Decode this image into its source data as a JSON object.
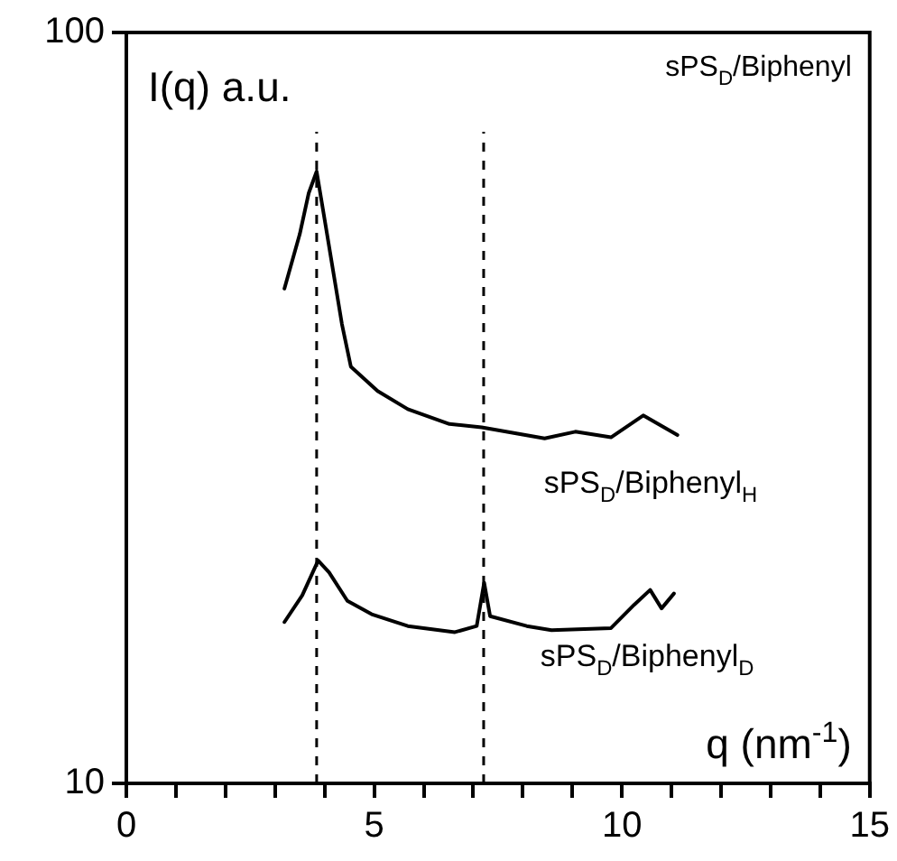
{
  "chart_data": {
    "type": "line",
    "title": "sPS$_{D}$/Biphenyl",
    "xlabel": "q (nm$^{-1}$)",
    "ylabel": "I(q) a.u.",
    "log": "y",
    "grid": false,
    "legend": false,
    "marker": "none",
    "line_style": "solid",
    "xlim": [
      0,
      15
    ],
    "xticks": [
      0,
      {
        "value": 1,
        "label": null
      },
      {
        "value": 2,
        "label": null
      },
      {
        "value": 3,
        "label": null
      },
      {
        "value": 4,
        "label": null
      },
      5,
      {
        "value": 6,
        "label": null
      },
      {
        "value": 7,
        "label": null
      },
      {
        "value": 8,
        "label": null
      },
      {
        "value": 9,
        "label": null
      },
      10,
      {
        "value": 11,
        "label": null
      },
      {
        "value": 12,
        "label": null
      },
      {
        "value": 13,
        "label": null
      },
      {
        "value": 14,
        "label": null
      },
      15
    ],
    "ylim": [
      10,
      100
    ],
    "yticks": [
      10,
      100
    ],
    "ref_lines": [
      {
        "axis": "x",
        "value": 3.84,
        "line_style": "dashed",
        "color": "#000000"
      },
      {
        "axis": "x",
        "value": 7.21,
        "line_style": "dashed",
        "color": "#000000"
      }
    ],
    "series": [
      {
        "name": "sPS$_{D}$/Biphenyl$_{H}$",
        "color": "#000000",
        "x": [
          3.19,
          3.5,
          3.68,
          3.84,
          4.05,
          4.35,
          4.53,
          5.07,
          5.68,
          6.52,
          7.17,
          8.44,
          9.06,
          9.78,
          10.43,
          11.12
        ],
        "values": [
          45.6,
          53.9,
          61.1,
          65.3,
          53.9,
          40.9,
          35.9,
          33.3,
          31.5,
          30.1,
          29.8,
          28.8,
          29.4,
          28.9,
          30.9,
          29.1
        ]
      },
      {
        "name": "sPS$_{D}$/Biphenyl$_{D}$",
        "color": "#000000",
        "x": [
          3.19,
          3.55,
          3.87,
          4.09,
          4.46,
          4.95,
          5.68,
          6.63,
          7.07,
          7.22,
          7.34,
          8.08,
          8.58,
          9.78,
          10.25,
          10.57,
          10.8,
          11.05
        ],
        "values": [
          16.4,
          17.8,
          19.8,
          19.1,
          17.5,
          16.8,
          16.2,
          15.9,
          16.2,
          18.5,
          16.7,
          16.2,
          16.0,
          16.1,
          17.3,
          18.1,
          17.1,
          17.9
        ]
      }
    ]
  }
}
